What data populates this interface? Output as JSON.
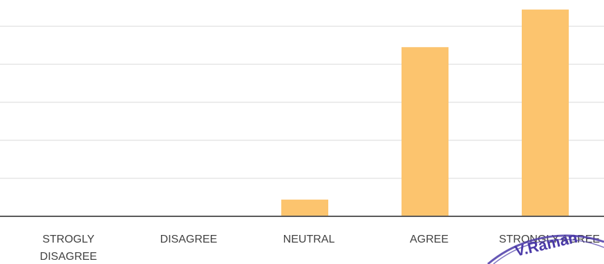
{
  "chart_data": {
    "type": "bar",
    "categories": [
      "STROGLY DISAGREE",
      "DISAGREE",
      "NEUTRAL",
      "AGREE",
      "STRONGLY AGREE"
    ],
    "category_lines": [
      [
        "STROGLY",
        "DISAGREE"
      ],
      [
        "DISAGREE"
      ],
      [
        "NEUTRAL"
      ],
      [
        "AGREE"
      ],
      [
        "STRONGLY AGREE"
      ]
    ],
    "values": [
      0,
      0,
      4.4,
      44.5,
      54.4
    ],
    "ylim": [
      0,
      55
    ],
    "grid_values": [
      10,
      20,
      30,
      40,
      50
    ],
    "grid": true,
    "bar_color": "#fcc46e",
    "gridline_color": "#d9d9d9",
    "axis_color": "#595959",
    "label_color": "#404040"
  },
  "stamp": {
    "text": "V.Raman",
    "color": "#4b3aa8"
  }
}
